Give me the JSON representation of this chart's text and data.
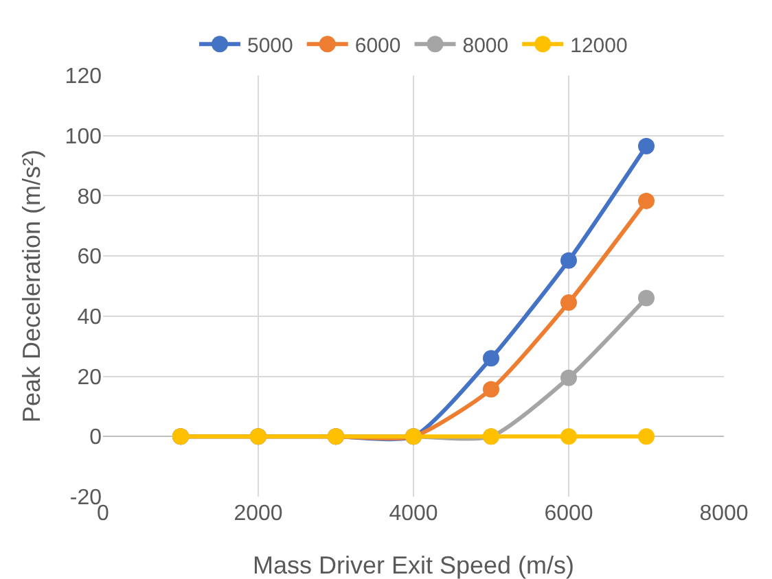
{
  "chart_data": {
    "type": "line",
    "xlabel": "Mass Driver Exit Speed (m/s)",
    "ylabel": "Peak Deceleration (m/s²)",
    "x": [
      1000,
      2000,
      3000,
      4000,
      5000,
      6000,
      7000
    ],
    "series": [
      {
        "name": "5000",
        "color": "#4472c4",
        "values": [
          0,
          0,
          0,
          0,
          26,
          58.5,
          96.5
        ]
      },
      {
        "name": "6000",
        "color": "#ed7d31",
        "values": [
          0,
          0,
          0,
          0,
          15.7,
          44.5,
          78.3
        ]
      },
      {
        "name": "8000",
        "color": "#a5a5a5",
        "values": [
          0,
          0,
          0,
          0,
          0,
          19.5,
          46
        ]
      },
      {
        "name": "12000",
        "color": "#ffc000",
        "values": [
          0,
          0,
          0,
          0,
          0,
          0,
          0
        ]
      }
    ],
    "xlim": [
      0,
      8000
    ],
    "xticks": [
      0,
      2000,
      4000,
      6000,
      8000
    ],
    "ylim": [
      -20,
      120
    ],
    "yticks": [
      -20,
      0,
      20,
      40,
      60,
      80,
      100,
      120
    ],
    "grid": true,
    "legend": "top",
    "marker": "circle",
    "line_style": "solid"
  }
}
